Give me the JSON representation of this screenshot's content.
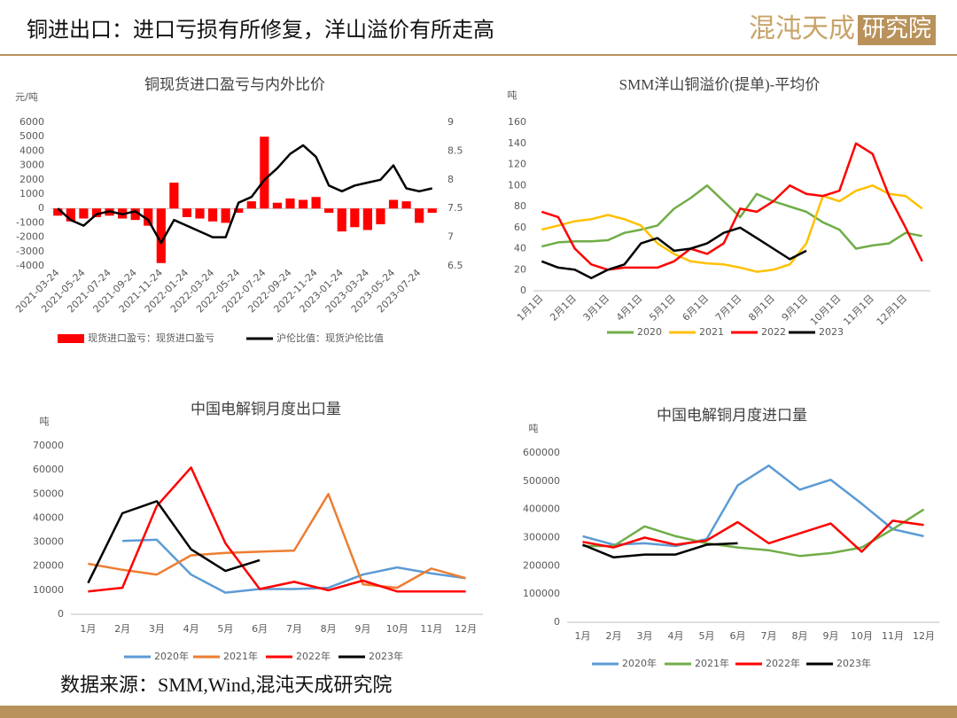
{
  "header": {
    "title": "铜进出口：进口亏损有所修复，洋山溢价有所走高",
    "logo_main": "混沌天成",
    "logo_box": "研究院"
  },
  "chart_data": [
    {
      "type": "combo",
      "title": "铜现货进口盈亏与内外比价",
      "ylabel": "元/吨",
      "categories": [
        "2021-03-24",
        null,
        "2021-05-24",
        null,
        "2021-07-24",
        null,
        "2021-09-24",
        null,
        "2021-11-24",
        null,
        "2022-01-24",
        null,
        "2022-03-24",
        null,
        "2022-05-24",
        null,
        "2022-07-24",
        null,
        "2022-09-24",
        null,
        "2022-11-24",
        null,
        "2023-01-24",
        null,
        "2023-03-24",
        null,
        "2023-05-24",
        null,
        "2023-07-24",
        null
      ],
      "series": [
        {
          "name": "现货进口盈亏：现货进口盈亏",
          "kind": "bar",
          "color": "#ff0000",
          "values": [
            -500,
            -900,
            -700,
            -600,
            -500,
            -700,
            -800,
            -1200,
            -3800,
            1800,
            -600,
            -700,
            -900,
            -1000,
            -300,
            500,
            5000,
            400,
            700,
            600,
            800,
            -300,
            -1600,
            -1300,
            -1500,
            -1100,
            600,
            500,
            -1000,
            -300
          ]
        },
        {
          "name": "沪伦比值：现货沪伦比值",
          "kind": "line",
          "axis": "y2",
          "color": "#000000",
          "values": [
            7.5,
            7.3,
            7.2,
            7.4,
            7.45,
            7.4,
            7.45,
            7.3,
            6.9,
            7.3,
            7.2,
            7.1,
            7.0,
            7.0,
            7.6,
            7.7,
            8.0,
            8.2,
            8.45,
            8.6,
            8.4,
            7.9,
            7.8,
            7.9,
            7.95,
            8.0,
            8.25,
            7.85,
            7.8,
            7.85
          ]
        }
      ],
      "ylim": [
        -4000,
        6000
      ],
      "yticks": [
        -4000,
        -3000,
        -2000,
        -1000,
        0,
        1000,
        2000,
        3000,
        4000,
        5000,
        6000
      ],
      "y2lim": [
        6.5,
        9
      ],
      "y2ticks": [
        6.5,
        7,
        7.5,
        8,
        8.5,
        9
      ]
    },
    {
      "type": "line",
      "title": "SMM洋山铜溢价(提单)-平均价",
      "ylabel": "吨",
      "categories": [
        "1月1日",
        null,
        "2月1日",
        null,
        "3月1日",
        null,
        "4月1日",
        null,
        "5月1日",
        null,
        "6月1日",
        null,
        "7月1日",
        null,
        "8月1日",
        null,
        "9月1日",
        null,
        "10月1日",
        null,
        "11月1日",
        null,
        "12月1日",
        null
      ],
      "series": [
        {
          "name": "2020",
          "color": "#70ad47",
          "values": [
            42,
            46,
            47,
            47,
            48,
            55,
            58,
            62,
            78,
            88,
            100,
            85,
            70,
            92,
            85,
            80,
            75,
            65,
            58,
            40,
            43,
            45,
            55,
            52
          ]
        },
        {
          "name": "2021",
          "color": "#ffc000",
          "values": [
            58,
            62,
            66,
            68,
            72,
            68,
            62,
            45,
            35,
            28,
            26,
            25,
            22,
            18,
            20,
            25,
            45,
            90,
            85,
            95,
            100,
            92,
            90,
            78
          ]
        },
        {
          "name": "2022",
          "color": "#ff0000",
          "values": [
            75,
            70,
            40,
            25,
            20,
            22,
            22,
            22,
            28,
            40,
            35,
            45,
            78,
            75,
            85,
            100,
            92,
            90,
            95,
            140,
            130,
            90,
            60,
            28
          ]
        },
        {
          "name": "2023",
          "color": "#000000",
          "values": [
            28,
            22,
            20,
            12,
            20,
            25,
            45,
            50,
            38,
            40,
            45,
            55,
            60,
            50,
            40,
            30,
            38,
            null,
            null,
            null,
            null,
            null,
            null,
            null
          ]
        }
      ],
      "ylim": [
        0,
        160
      ],
      "yticks": [
        0,
        20,
        40,
        60,
        80,
        100,
        120,
        140,
        160
      ]
    },
    {
      "type": "line",
      "title": "中国电解铜月度出口量",
      "ylabel": "吨",
      "categories": [
        "1月",
        "2月",
        "3月",
        "4月",
        "5月",
        "6月",
        "7月",
        "8月",
        "9月",
        "10月",
        "11月",
        "12月"
      ],
      "series": [
        {
          "name": "2020年",
          "color": "#5b9bd5",
          "values": [
            null,
            30500,
            31000,
            16500,
            9000,
            10500,
            10500,
            11000,
            16500,
            19500,
            17000,
            15000
          ]
        },
        {
          "name": "2021年",
          "color": "#ed7d31",
          "values": [
            21000,
            18500,
            16500,
            24500,
            25500,
            26000,
            26500,
            50000,
            12500,
            11000,
            19000,
            15000
          ]
        },
        {
          "name": "2022年",
          "color": "#ff0000",
          "values": [
            9500,
            11000,
            45000,
            61000,
            29500,
            10500,
            13500,
            10000,
            14000,
            9500,
            9500,
            9500
          ]
        },
        {
          "name": "2023年",
          "color": "#000000",
          "values": [
            13000,
            42000,
            47000,
            27000,
            18000,
            22500,
            null,
            null,
            null,
            null,
            null,
            null
          ]
        }
      ],
      "ylim": [
        0,
        70000
      ],
      "yticks": [
        0,
        10000,
        20000,
        30000,
        40000,
        50000,
        60000,
        70000
      ]
    },
    {
      "type": "line",
      "title": "中国电解铜月度进口量",
      "ylabel": "吨",
      "categories": [
        "1月",
        "2月",
        "3月",
        "4月",
        "5月",
        "6月",
        "7月",
        "8月",
        "9月",
        "10月",
        "11月",
        "12月"
      ],
      "series": [
        {
          "name": "2020年",
          "color": "#5b9bd5",
          "values": [
            305000,
            275000,
            280000,
            270000,
            295000,
            485000,
            555000,
            470000,
            505000,
            420000,
            330000,
            305000
          ]
        },
        {
          "name": "2021年",
          "color": "#70ad47",
          "values": [
            270000,
            270000,
            340000,
            305000,
            280000,
            265000,
            255000,
            235000,
            245000,
            265000,
            330000,
            400000
          ]
        },
        {
          "name": "2022年",
          "color": "#ff0000",
          "values": [
            285000,
            265000,
            300000,
            275000,
            290000,
            355000,
            280000,
            315000,
            350000,
            250000,
            360000,
            345000
          ]
        },
        {
          "name": "2023年",
          "color": "#000000",
          "values": [
            275000,
            230000,
            240000,
            240000,
            275000,
            280000,
            null,
            null,
            null,
            null,
            null,
            null
          ]
        }
      ],
      "ylim": [
        0,
        600000
      ],
      "yticks": [
        0,
        100000,
        200000,
        300000,
        400000,
        500000,
        600000
      ]
    }
  ],
  "footer": {
    "source": "数据来源：SMM,Wind,混沌天成研究院"
  }
}
